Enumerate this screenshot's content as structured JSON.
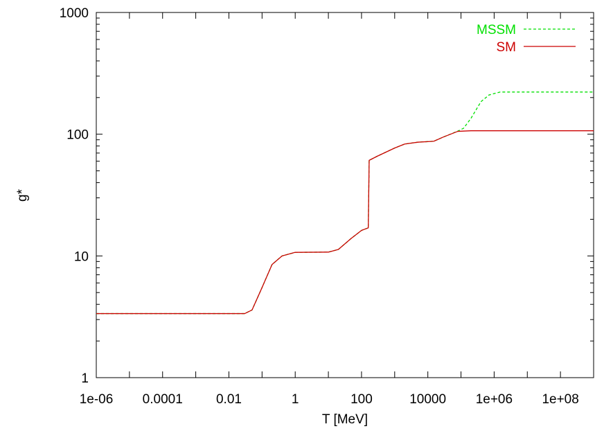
{
  "chart_data": {
    "type": "line",
    "xlabel": "T [MeV]",
    "ylabel": "g*",
    "xscale": "log",
    "yscale": "log",
    "xlim": [
      1e-06,
      1000000000.0
    ],
    "ylim": [
      1,
      1000
    ],
    "x_ticks": [
      "1e-06",
      "0.0001",
      "0.01",
      "1",
      "100",
      "10000",
      "1e+06",
      "1e+08"
    ],
    "y_ticks": [
      "1",
      "10",
      "100",
      "1000"
    ],
    "legend_position": "top-right",
    "grid": false,
    "series": [
      {
        "name": "MSSM",
        "color": "#00e000",
        "style": "dashed",
        "points": [
          [
            1e-06,
            3.36
          ],
          [
            0.03,
            3.36
          ],
          [
            0.05,
            3.6
          ],
          [
            0.1,
            5.5
          ],
          [
            0.2,
            8.5
          ],
          [
            0.4,
            10.0
          ],
          [
            1,
            10.7
          ],
          [
            10,
            10.75
          ],
          [
            20,
            11.3
          ],
          [
            50,
            14.0
          ],
          [
            100,
            16.2
          ],
          [
            150,
            16.9
          ],
          [
            160,
            17.0
          ],
          [
            170,
            61.0
          ],
          [
            300,
            66.0
          ],
          [
            1000,
            77.0
          ],
          [
            2000,
            83.0
          ],
          [
            5000,
            86.0
          ],
          [
            15000,
            87.5
          ],
          [
            30000,
            95.0
          ],
          [
            80000,
            106.0
          ],
          [
            120000,
            112.0
          ],
          [
            200000,
            135.0
          ],
          [
            400000,
            185.0
          ],
          [
            700000,
            210.0
          ],
          [
            1500000,
            222.0
          ],
          [
            1000000000.0,
            222.0
          ]
        ]
      },
      {
        "name": "SM",
        "color": "#cc0000",
        "style": "solid",
        "points": [
          [
            1e-06,
            3.36
          ],
          [
            0.03,
            3.36
          ],
          [
            0.05,
            3.6
          ],
          [
            0.1,
            5.5
          ],
          [
            0.2,
            8.5
          ],
          [
            0.4,
            10.0
          ],
          [
            1,
            10.7
          ],
          [
            10,
            10.75
          ],
          [
            20,
            11.3
          ],
          [
            50,
            14.0
          ],
          [
            100,
            16.2
          ],
          [
            150,
            16.9
          ],
          [
            160,
            17.0
          ],
          [
            170,
            61.0
          ],
          [
            300,
            66.0
          ],
          [
            1000,
            77.0
          ],
          [
            2000,
            83.0
          ],
          [
            5000,
            86.0
          ],
          [
            15000,
            87.5
          ],
          [
            30000,
            95.0
          ],
          [
            80000,
            105.5
          ],
          [
            200000,
            106.75
          ],
          [
            1000000000.0,
            106.75
          ]
        ]
      }
    ]
  }
}
